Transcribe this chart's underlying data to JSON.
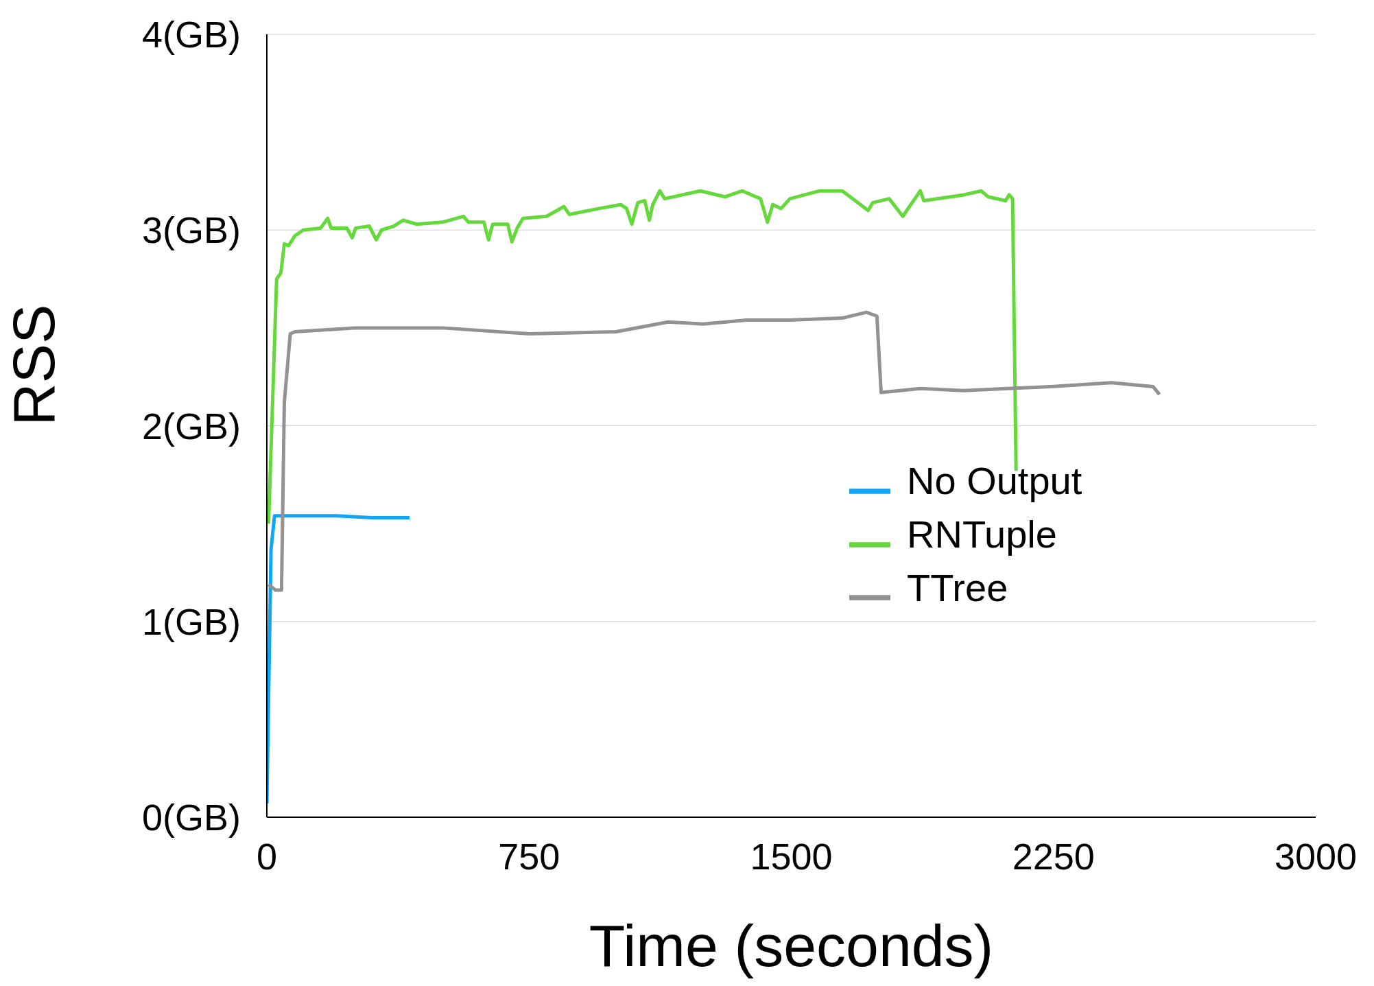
{
  "chart_data": {
    "type": "line",
    "xlabel": "Time (seconds)",
    "ylabel": "RSS",
    "xlim": [
      0,
      3000
    ],
    "xticks": [
      0,
      750,
      1500,
      2250,
      3000
    ],
    "ylim": [
      0,
      4
    ],
    "yticks": [
      {
        "value": 0,
        "label": "0(GB)"
      },
      {
        "value": 1,
        "label": "1(GB)"
      },
      {
        "value": 2,
        "label": "2(GB)"
      },
      {
        "value": 3,
        "label": "3(GB)"
      },
      {
        "value": 4,
        "label": "4(GB)"
      }
    ],
    "grid": "y",
    "legend": "right",
    "marker": "none",
    "line_style": "solid",
    "series": [
      {
        "name": "No Output",
        "color": "#10a5f5",
        "x": [
          0,
          12,
          22,
          100,
          200,
          300,
          408
        ],
        "values": [
          0.07,
          1.37,
          1.54,
          1.54,
          1.54,
          1.53,
          1.53
        ]
      },
      {
        "name": "RNTuple",
        "color": "#65d83b",
        "x": [
          5,
          28,
          40,
          50,
          62,
          80,
          104,
          154,
          174,
          184,
          229,
          244,
          254,
          293,
          313,
          328,
          363,
          390,
          428,
          502,
          562,
          577,
          621,
          634,
          646,
          689,
          701,
          716,
          733,
          800,
          850,
          865,
          950,
          1012,
          1029,
          1044,
          1061,
          1081,
          1094,
          1104,
          1124,
          1138,
          1240,
          1310,
          1360,
          1412,
          1432,
          1447,
          1471,
          1496,
          1581,
          1646,
          1720,
          1733,
          1780,
          1819,
          1869,
          1879,
          1994,
          2043,
          2063,
          2113,
          2123,
          2133,
          2143
        ],
        "values": [
          1.5,
          2.75,
          2.78,
          2.93,
          2.92,
          2.97,
          3.0,
          3.01,
          3.06,
          3.01,
          3.01,
          2.96,
          3.01,
          3.02,
          2.95,
          3.0,
          3.02,
          3.05,
          3.03,
          3.04,
          3.07,
          3.04,
          3.04,
          2.95,
          3.03,
          3.03,
          2.94,
          3.01,
          3.06,
          3.07,
          3.12,
          3.08,
          3.11,
          3.13,
          3.11,
          3.03,
          3.14,
          3.15,
          3.05,
          3.13,
          3.2,
          3.16,
          3.2,
          3.17,
          3.2,
          3.16,
          3.04,
          3.13,
          3.11,
          3.16,
          3.2,
          3.2,
          3.1,
          3.14,
          3.16,
          3.07,
          3.2,
          3.15,
          3.18,
          3.2,
          3.17,
          3.15,
          3.18,
          3.16,
          1.77
        ]
      },
      {
        "name": "TTree",
        "color": "#929292",
        "x": [
          5,
          25,
          42,
          50,
          67,
          80,
          254,
          502,
          751,
          999,
          1148,
          1248,
          1372,
          1496,
          1646,
          1715,
          1745,
          1757,
          1869,
          1994,
          2118,
          2242,
          2416,
          2535,
          2553
        ],
        "values": [
          1.19,
          1.16,
          1.16,
          2.12,
          2.47,
          2.48,
          2.5,
          2.5,
          2.47,
          2.48,
          2.53,
          2.52,
          2.54,
          2.54,
          2.55,
          2.58,
          2.56,
          2.17,
          2.19,
          2.18,
          2.19,
          2.2,
          2.22,
          2.2,
          2.16
        ]
      }
    ]
  }
}
